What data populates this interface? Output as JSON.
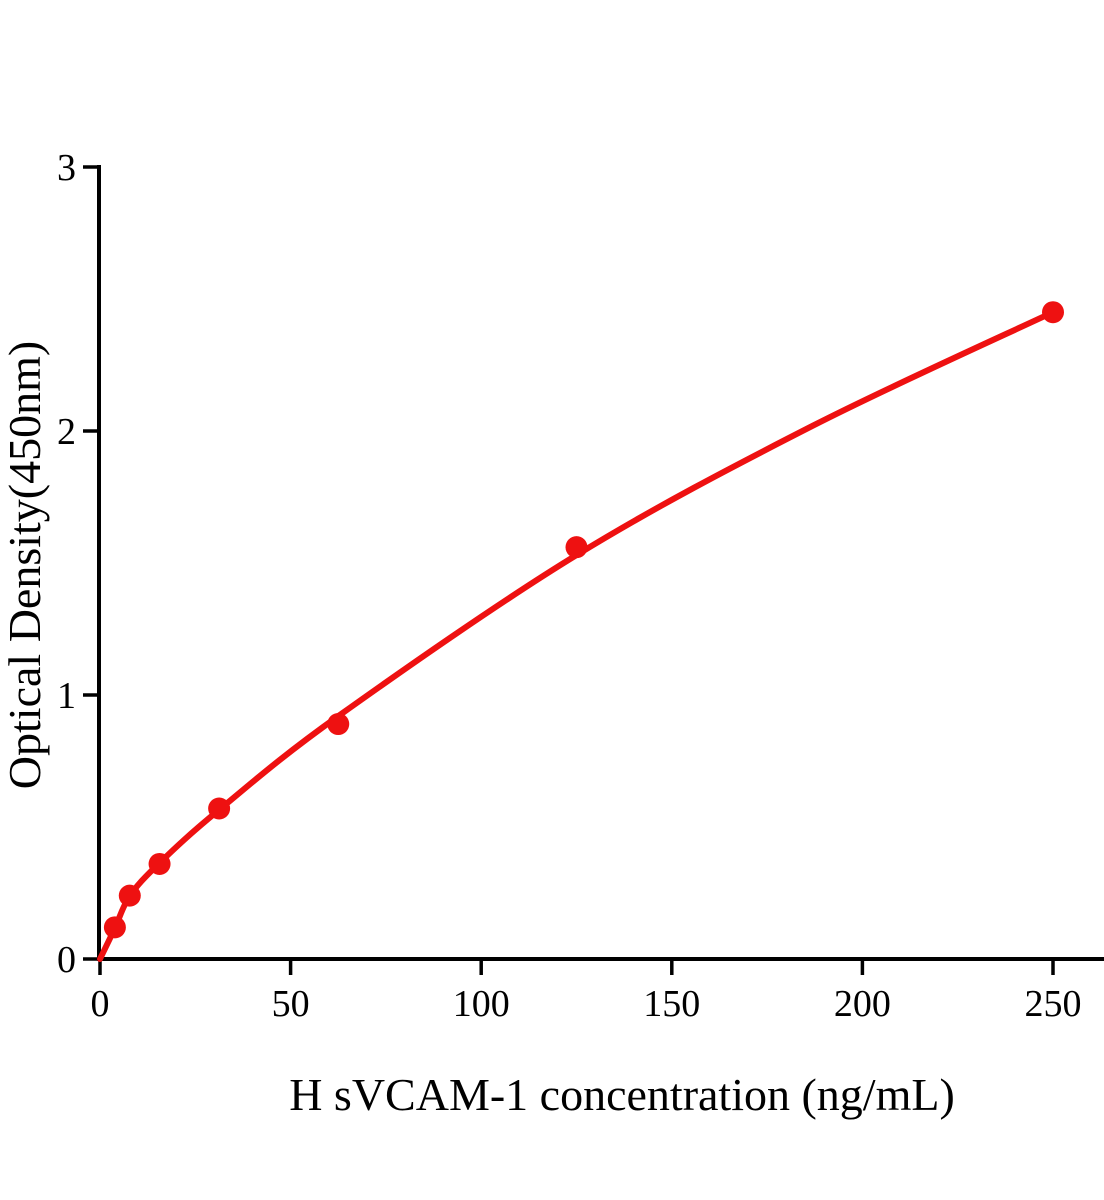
{
  "page": {
    "background": "#ffffff"
  },
  "chart_data": {
    "type": "scatter",
    "title": "",
    "xlabel": "H sVCAM-1 concentration (ng/mL)",
    "ylabel": "Optical Density(450nm)",
    "x": [
      3.906,
      7.813,
      15.625,
      31.25,
      62.5,
      125,
      250
    ],
    "y": [
      0.12,
      0.24,
      0.36,
      0.57,
      0.89,
      1.56,
      2.45
    ],
    "curve_points": [
      [
        0,
        0
      ],
      [
        3.906,
        0.117
      ],
      [
        7.813,
        0.239
      ],
      [
        15.625,
        0.364
      ],
      [
        31.25,
        0.565
      ],
      [
        62.5,
        0.92
      ],
      [
        125,
        1.53
      ],
      [
        187,
        2.02
      ],
      [
        250,
        2.45
      ]
    ],
    "xticks": [
      0,
      50,
      100,
      150,
      200,
      250
    ],
    "yticks": [
      0,
      1,
      2,
      3
    ],
    "xlim": [
      0,
      263.5
    ],
    "ylim": [
      0,
      3
    ],
    "grid": false,
    "legend": null,
    "marker_color": "#ee1111",
    "line_color": "#ee1111",
    "axis_color": "#000000"
  }
}
